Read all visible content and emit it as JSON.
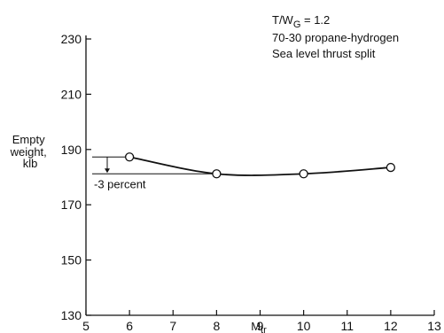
{
  "chart_data": {
    "type": "line",
    "xlabel": "M",
    "xlabel_sub": "tr",
    "ylabel_lines": [
      "Empty",
      "weight,",
      "klb"
    ],
    "xlim": [
      5,
      13
    ],
    "ylim": [
      130,
      230
    ],
    "x_ticks": [
      5,
      6,
      7,
      8,
      9,
      10,
      11,
      12,
      13
    ],
    "y_ticks": [
      130,
      150,
      170,
      190,
      210,
      230
    ],
    "grid": false,
    "series": [
      {
        "x": [
          6,
          8,
          10,
          12
        ],
        "y": [
          187.3,
          181.2,
          181.2,
          183.5
        ],
        "markers": "open-circle"
      }
    ],
    "notes": {
      "tw_main": "T/W",
      "tw_sub": "G",
      "tw_rest": " = 1.2",
      "fuel": "70-30 propane-hydrogen",
      "split": "Sea level thrust split"
    },
    "annotation": {
      "text": "-3 percent",
      "from_y": 187.3,
      "to_y": 181.2
    }
  }
}
